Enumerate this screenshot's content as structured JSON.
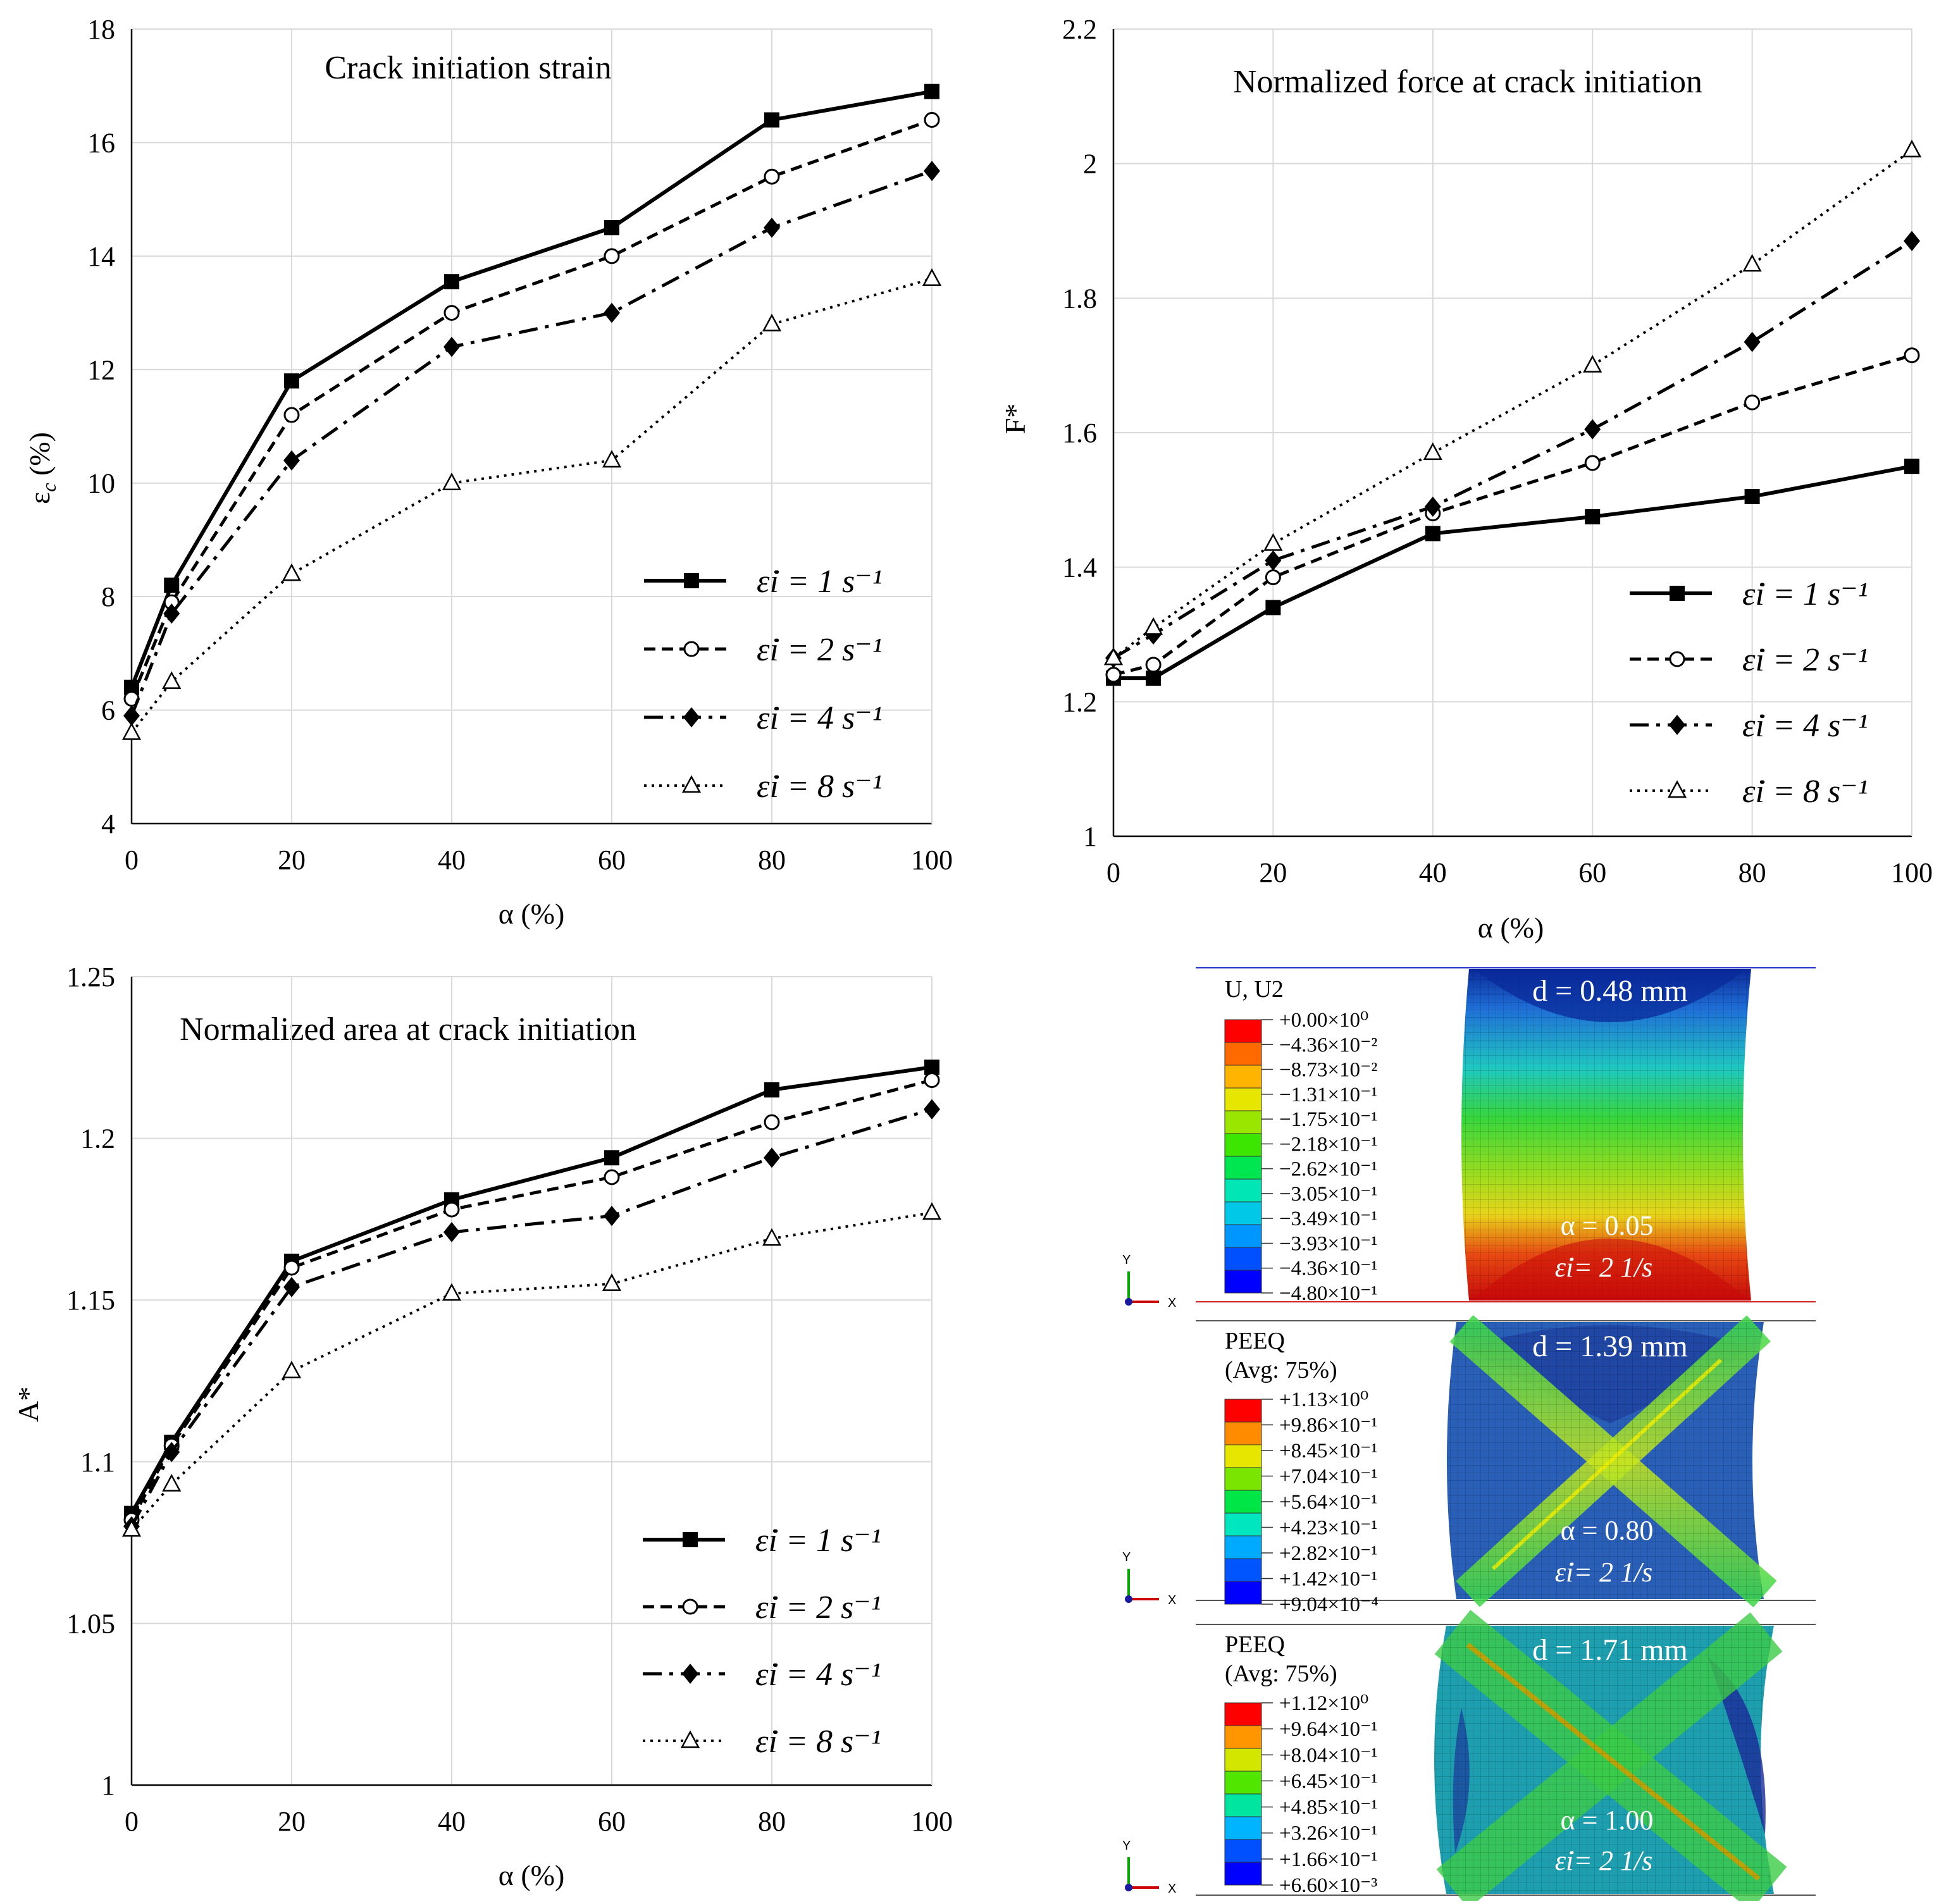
{
  "chart_data": [
    {
      "id": "strain",
      "type": "line",
      "title": "Crack initiation strain",
      "xlabel": "α (%)",
      "ylabel": "εc (%)",
      "xlim": [
        0,
        100
      ],
      "ylim": [
        4,
        18
      ],
      "xticks": [
        0,
        20,
        40,
        60,
        80,
        100
      ],
      "yticks": [
        4,
        6,
        8,
        10,
        12,
        14,
        16,
        18
      ],
      "ytick_labels": [
        "4",
        "6",
        "8",
        "10",
        "12",
        "14",
        "16",
        "18"
      ],
      "x": [
        0,
        5,
        20,
        40,
        60,
        80,
        100
      ],
      "series": [
        {
          "name": "ε̇i = 1 s⁻¹",
          "values": [
            6.4,
            8.2,
            11.8,
            13.55,
            14.5,
            16.4,
            16.9
          ]
        },
        {
          "name": "ε̇i = 2 s⁻¹",
          "values": [
            6.2,
            7.9,
            11.2,
            13.0,
            14.0,
            15.4,
            16.4
          ]
        },
        {
          "name": "ε̇i = 4 s⁻¹",
          "values": [
            5.9,
            7.7,
            10.4,
            12.4,
            13.0,
            14.5,
            15.5
          ]
        },
        {
          "name": "ε̇i = 8 s⁻¹",
          "values": [
            5.6,
            6.5,
            8.4,
            10.0,
            10.4,
            12.8,
            13.6
          ]
        }
      ]
    },
    {
      "id": "force",
      "type": "line",
      "title": "Normalized force at crack initiation",
      "xlabel": "α (%)",
      "ylabel": "F*",
      "xlim": [
        0,
        100
      ],
      "ylim": [
        1,
        2.2
      ],
      "xticks": [
        0,
        20,
        40,
        60,
        80,
        100
      ],
      "yticks": [
        1,
        1.2,
        1.4,
        1.6,
        1.8,
        2,
        2.2
      ],
      "ytick_labels": [
        "1",
        "1.2",
        "1.4",
        "1.6",
        "1.8",
        "2",
        "2.2"
      ],
      "x": [
        0,
        5,
        20,
        40,
        60,
        80,
        100
      ],
      "series": [
        {
          "name": "ε̇i = 1 s⁻¹",
          "values": [
            1.235,
            1.235,
            1.34,
            1.45,
            1.475,
            1.505,
            1.55
          ]
        },
        {
          "name": "ε̇i = 2 s⁻¹",
          "values": [
            1.24,
            1.255,
            1.385,
            1.48,
            1.555,
            1.645,
            1.715
          ]
        },
        {
          "name": "ε̇i = 4 s⁻¹",
          "values": [
            1.265,
            1.3,
            1.41,
            1.49,
            1.605,
            1.735,
            1.885
          ]
        },
        {
          "name": "ε̇i = 8 s⁻¹",
          "values": [
            1.265,
            1.31,
            1.435,
            1.57,
            1.7,
            1.85,
            2.02
          ]
        }
      ]
    },
    {
      "id": "area",
      "type": "line",
      "title": "Normalized area at crack initiation",
      "xlabel": "α (%)",
      "ylabel": "A*",
      "xlim": [
        0,
        100
      ],
      "ylim": [
        1,
        1.25
      ],
      "xticks": [
        0,
        20,
        40,
        60,
        80,
        100
      ],
      "yticks": [
        1,
        1.05,
        1.1,
        1.15,
        1.2,
        1.25
      ],
      "ytick_labels": [
        "1",
        "1.05",
        "1.1",
        "1.15",
        "1.2",
        "1.25"
      ],
      "x": [
        0,
        5,
        20,
        40,
        60,
        80,
        100
      ],
      "series": [
        {
          "name": "ε̇i = 1 s⁻¹",
          "values": [
            1.084,
            1.106,
            1.162,
            1.181,
            1.194,
            1.215,
            1.222
          ]
        },
        {
          "name": "ε̇i = 2 s⁻¹",
          "values": [
            1.082,
            1.105,
            1.16,
            1.178,
            1.188,
            1.205,
            1.218
          ]
        },
        {
          "name": "ε̇i = 4 s⁻¹",
          "values": [
            1.08,
            1.103,
            1.154,
            1.171,
            1.176,
            1.194,
            1.209
          ]
        },
        {
          "name": "ε̇i = 8 s⁻¹",
          "values": [
            1.079,
            1.093,
            1.128,
            1.152,
            1.155,
            1.169,
            1.177
          ]
        }
      ]
    }
  ],
  "fe_panels": [
    {
      "variable": "U, U2",
      "averaging": "",
      "legend_values": [
        "+0.00×10⁰",
        "−4.36×10⁻²",
        "−8.73×10⁻²",
        "−1.31×10⁻¹",
        "−1.75×10⁻¹",
        "−2.18×10⁻¹",
        "−2.62×10⁻¹",
        "−3.05×10⁻¹",
        "−3.49×10⁻¹",
        "−3.93×10⁻¹",
        "−4.36×10⁻¹",
        "−4.80×10⁻¹"
      ],
      "d_label": "d = 0.48 mm",
      "alpha_label": "α = 0.05",
      "rate_label": "ε̇i= 2 1/s"
    },
    {
      "variable": "PEEQ",
      "averaging": "(Avg: 75%)",
      "legend_values": [
        "+1.13×10⁰",
        "+9.86×10⁻¹",
        "+8.45×10⁻¹",
        "+7.04×10⁻¹",
        "+5.64×10⁻¹",
        "+4.23×10⁻¹",
        "+2.82×10⁻¹",
        "+1.42×10⁻¹",
        "+9.04×10⁻⁴"
      ],
      "d_label": "d = 1.39 mm",
      "alpha_label": "α = 0.80",
      "rate_label": "ε̇i= 2 1/s"
    },
    {
      "variable": "PEEQ",
      "averaging": "(Avg: 75%)",
      "legend_values": [
        "+1.12×10⁰",
        "+9.64×10⁻¹",
        "+8.04×10⁻¹",
        "+6.45×10⁻¹",
        "+4.85×10⁻¹",
        "+3.26×10⁻¹",
        "+1.66×10⁻¹",
        "+6.60×10⁻³"
      ],
      "d_label": "d = 1.71 mm",
      "alpha_label": "α = 1.00",
      "rate_label": "ε̇i= 2 1/s"
    }
  ],
  "triad": {
    "x_label": "X",
    "y_label": "Y"
  },
  "colors": {
    "axis": "#000000",
    "grid": "#d9d9d9",
    "contour_12": [
      "#ff0000",
      "#ff6a00",
      "#ffb400",
      "#e6e600",
      "#9ae600",
      "#3ce600",
      "#00e650",
      "#00e6b4",
      "#00c8e6",
      "#0096ff",
      "#0050ff",
      "#0000ff"
    ],
    "contour_9": [
      "#ff0000",
      "#ff8c00",
      "#e6e600",
      "#7ae600",
      "#00e646",
      "#00e6be",
      "#00aaff",
      "#0055ff",
      "#0000ff"
    ],
    "contour_8": [
      "#ff0000",
      "#ff9600",
      "#d2e600",
      "#50e600",
      "#00e6a0",
      "#00b4ff",
      "#0050ff",
      "#0000ff"
    ]
  }
}
